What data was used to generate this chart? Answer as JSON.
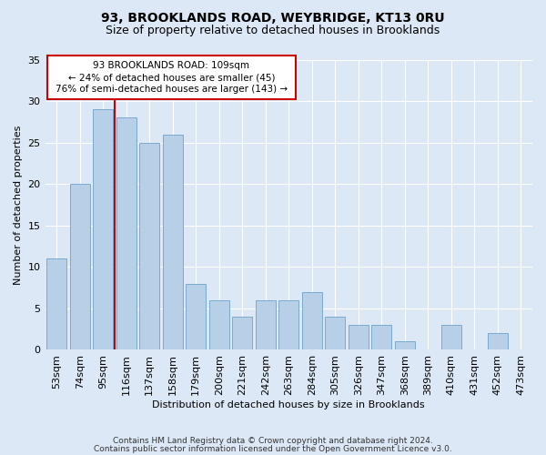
{
  "title1": "93, BROOKLANDS ROAD, WEYBRIDGE, KT13 0RU",
  "title2": "Size of property relative to detached houses in Brooklands",
  "xlabel": "Distribution of detached houses by size in Brooklands",
  "ylabel": "Number of detached properties",
  "categories": [
    "53sqm",
    "74sqm",
    "95sqm",
    "116sqm",
    "137sqm",
    "158sqm",
    "179sqm",
    "200sqm",
    "221sqm",
    "242sqm",
    "263sqm",
    "284sqm",
    "305sqm",
    "326sqm",
    "347sqm",
    "368sqm",
    "389sqm",
    "410sqm",
    "431sqm",
    "452sqm",
    "473sqm"
  ],
  "values": [
    11,
    20,
    29,
    28,
    25,
    26,
    8,
    6,
    4,
    6,
    6,
    7,
    4,
    3,
    3,
    1,
    0,
    3,
    0,
    2,
    0
  ],
  "bar_color": "#b8cfe8",
  "bar_edge_color": "#7aaad0",
  "annotation_text_line1": "93 BROOKLANDS ROAD: 109sqm",
  "annotation_text_line2": "← 24% of detached houses are smaller (45)",
  "annotation_text_line3": "76% of semi-detached houses are larger (143) →",
  "vline_x": 2.5,
  "ylim": [
    0,
    35
  ],
  "yticks": [
    0,
    5,
    10,
    15,
    20,
    25,
    30,
    35
  ],
  "bg_color": "#dce8f5",
  "footer_line1": "Contains HM Land Registry data © Crown copyright and database right 2024.",
  "footer_line2": "Contains public sector information licensed under the Open Government Licence v3.0.",
  "box_color": "#cc0000"
}
